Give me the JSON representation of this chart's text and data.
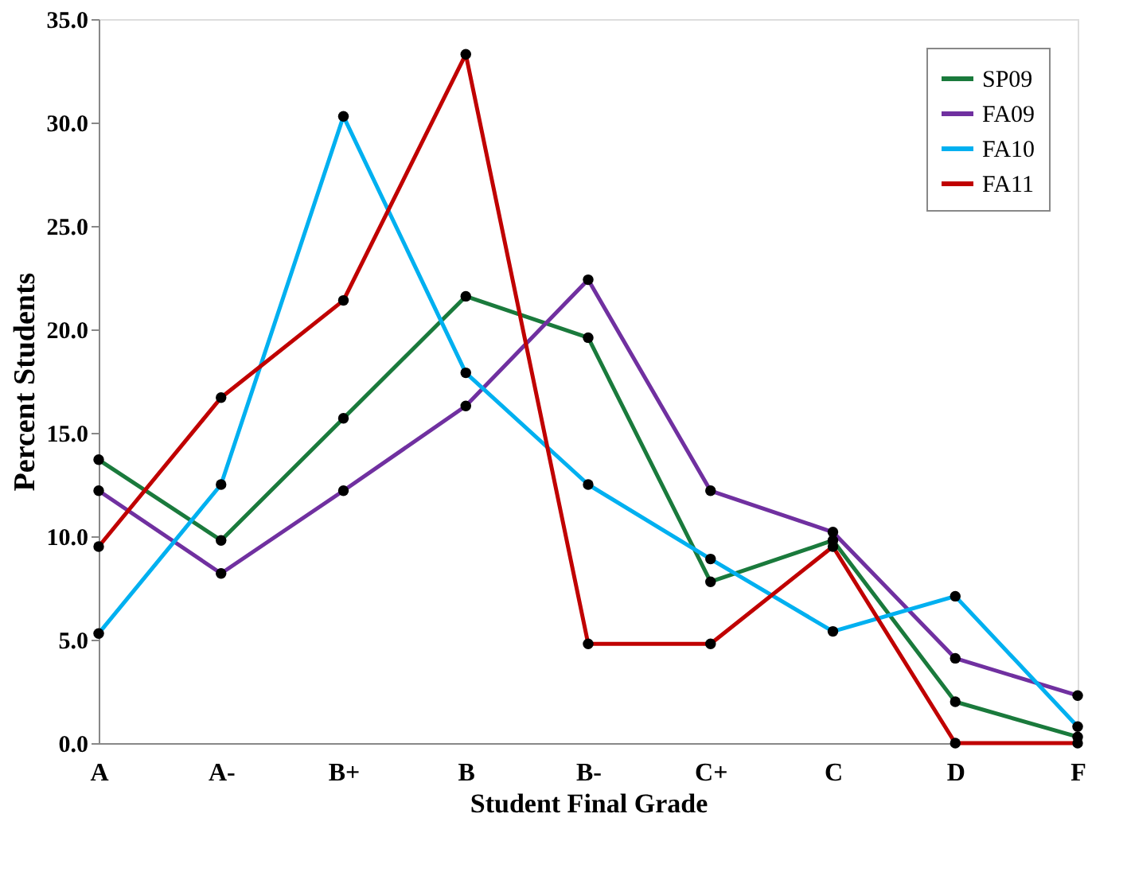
{
  "chart_data": {
    "type": "line",
    "xlabel": "Student Final Grade",
    "ylabel": "Percent Students",
    "categories": [
      "A",
      "A-",
      "B+",
      "B",
      "B-",
      "C+",
      "C",
      "D",
      "F"
    ],
    "series": [
      {
        "name": "SP09",
        "color": "#1a7a3c",
        "values": [
          13.7,
          9.8,
          15.7,
          21.6,
          19.6,
          7.8,
          9.8,
          2.0,
          0.3
        ]
      },
      {
        "name": "FA09",
        "color": "#7030a0",
        "values": [
          12.2,
          8.2,
          12.2,
          16.3,
          22.4,
          12.2,
          10.2,
          4.1,
          2.3
        ]
      },
      {
        "name": "FA10",
        "color": "#00b0f0",
        "values": [
          5.3,
          12.5,
          30.3,
          17.9,
          12.5,
          8.9,
          5.4,
          7.1,
          0.8
        ]
      },
      {
        "name": "FA11",
        "color": "#c00000",
        "values": [
          9.5,
          16.7,
          21.4,
          33.3,
          4.8,
          4.8,
          9.5,
          0.0,
          0.0
        ]
      }
    ],
    "ylim": [
      0,
      35
    ],
    "yticks": [
      {
        "value": 0,
        "label": "0.0"
      },
      {
        "value": 5,
        "label": "5.0"
      },
      {
        "value": 10,
        "label": "10.0"
      },
      {
        "value": 15,
        "label": "15.0"
      },
      {
        "value": 20,
        "label": "20.0"
      },
      {
        "value": 25,
        "label": "25.0"
      },
      {
        "value": 30,
        "label": "30.0"
      },
      {
        "value": 35,
        "label": "35.0"
      }
    ],
    "grid": false,
    "legend": "top right",
    "marker": "circle",
    "line_style": "solid"
  }
}
